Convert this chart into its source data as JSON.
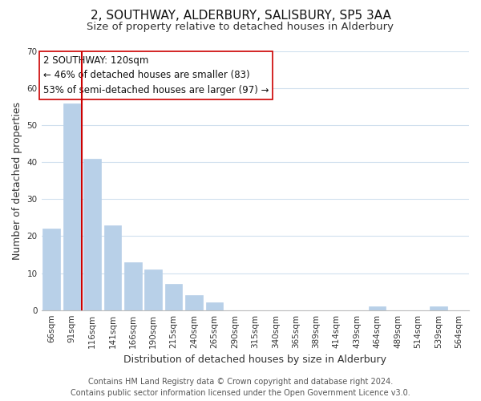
{
  "title": "2, SOUTHWAY, ALDERBURY, SALISBURY, SP5 3AA",
  "subtitle": "Size of property relative to detached houses in Alderbury",
  "xlabel": "Distribution of detached houses by size in Alderbury",
  "ylabel": "Number of detached properties",
  "bar_labels": [
    "66sqm",
    "91sqm",
    "116sqm",
    "141sqm",
    "166sqm",
    "190sqm",
    "215sqm",
    "240sqm",
    "265sqm",
    "290sqm",
    "315sqm",
    "340sqm",
    "365sqm",
    "389sqm",
    "414sqm",
    "439sqm",
    "464sqm",
    "489sqm",
    "514sqm",
    "539sqm",
    "564sqm"
  ],
  "bar_values": [
    22,
    56,
    41,
    23,
    13,
    11,
    7,
    4,
    2,
    0,
    0,
    0,
    0,
    0,
    0,
    0,
    1,
    0,
    0,
    1,
    0
  ],
  "bar_color": "#b8d0e8",
  "bar_edge_color": "#b8d0e8",
  "vline_color": "#cc0000",
  "annotation_text_line1": "2 SOUTHWAY: 120sqm",
  "annotation_text_line2": "← 46% of detached houses are smaller (83)",
  "annotation_text_line3": "53% of semi-detached houses are larger (97) →",
  "annotation_box_facecolor": "#ffffff",
  "annotation_box_edgecolor": "#cc0000",
  "ylim": [
    0,
    70
  ],
  "yticks": [
    0,
    10,
    20,
    30,
    40,
    50,
    60,
    70
  ],
  "footer_line1": "Contains HM Land Registry data © Crown copyright and database right 2024.",
  "footer_line2": "Contains public sector information licensed under the Open Government Licence v3.0.",
  "background_color": "#ffffff",
  "grid_color": "#d0e0ee",
  "title_fontsize": 11,
  "subtitle_fontsize": 9.5,
  "axis_label_fontsize": 9,
  "tick_fontsize": 7.5,
  "annotation_fontsize": 8.5,
  "footer_fontsize": 7
}
